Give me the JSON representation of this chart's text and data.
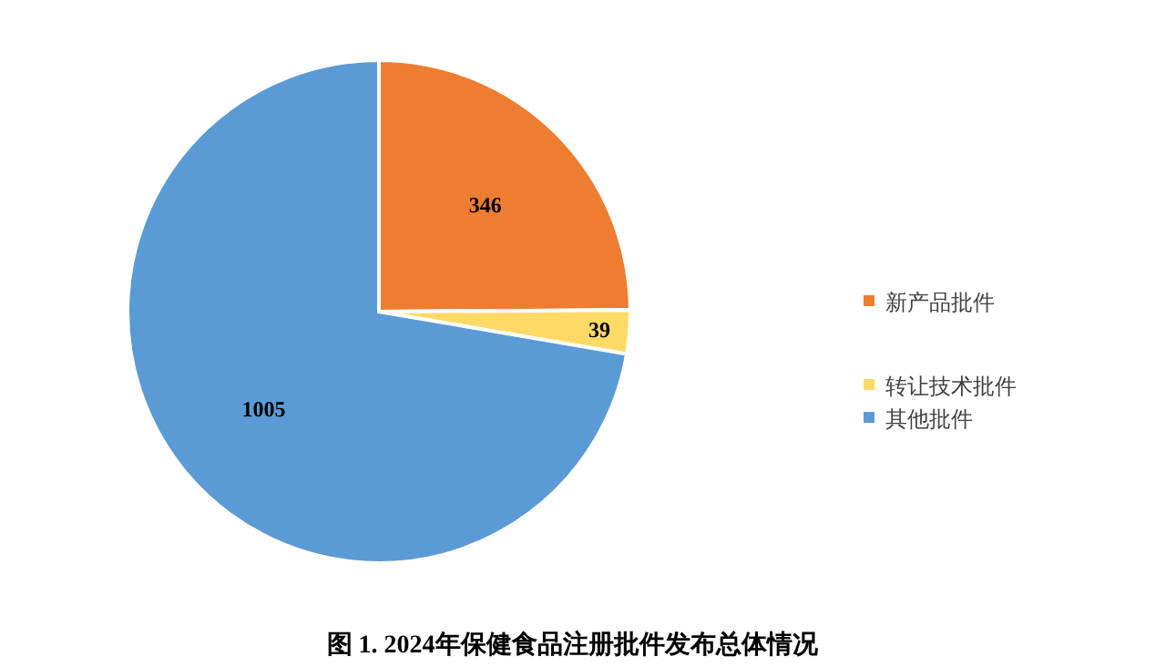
{
  "chart_data": {
    "type": "pie",
    "title": "图 1. 2024年保健食品注册批件发布总体情况",
    "categories": [
      "新产品批件",
      "转让技术批件",
      "其他批件"
    ],
    "values": [
      346,
      39,
      1005
    ],
    "colors": [
      "#ed7d31",
      "#ffd966",
      "#5b9bd5"
    ],
    "data_labels": true,
    "legend": "right"
  }
}
